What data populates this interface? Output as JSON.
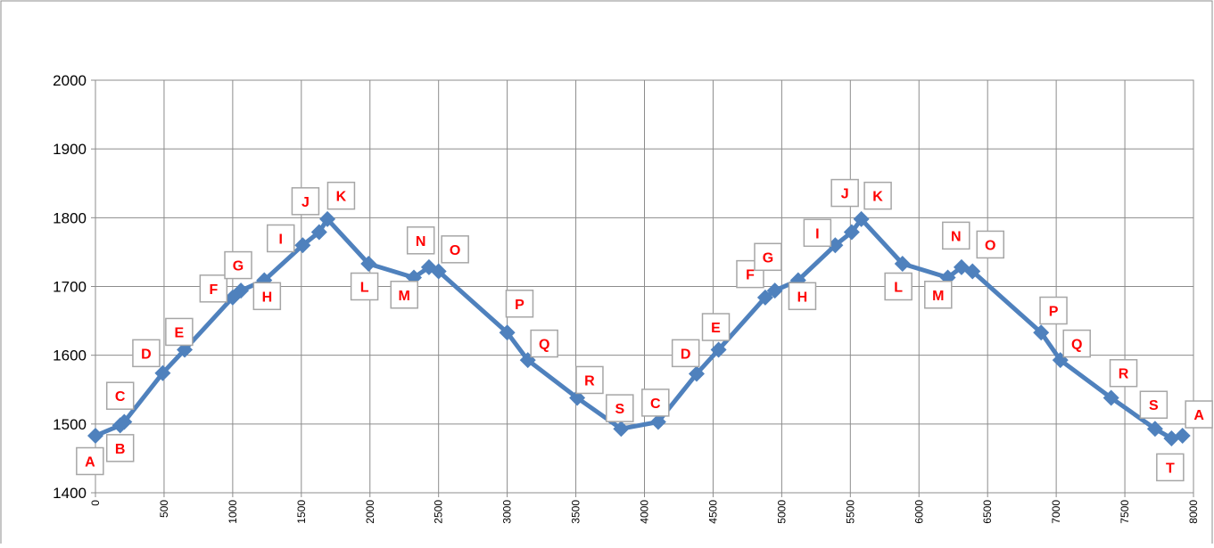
{
  "chart_data": {
    "type": "line",
    "title": "",
    "xlabel": "",
    "ylabel": "",
    "xlim": [
      0,
      8000
    ],
    "ylim": [
      1400,
      2000
    ],
    "x_ticks": [
      "0",
      "500",
      "1000",
      "1500",
      "2000",
      "2500",
      "3000",
      "3500",
      "4000",
      "4500",
      "5000",
      "5500",
      "6000",
      "6500",
      "7000",
      "7500",
      "8000"
    ],
    "y_ticks": [
      "1400",
      "1500",
      "1600",
      "1700",
      "1800",
      "1900",
      "2000"
    ],
    "grid": true,
    "legend": "none",
    "line_color": "#4f81bd",
    "label_color": "#ff0000",
    "series": [
      {
        "points": [
          {
            "x": 0,
            "y": 1483
          },
          {
            "x": 180,
            "y": 1498
          },
          {
            "x": 210,
            "y": 1503
          },
          {
            "x": 490,
            "y": 1574
          },
          {
            "x": 650,
            "y": 1608
          },
          {
            "x": 1000,
            "y": 1684
          },
          {
            "x": 1060,
            "y": 1694
          },
          {
            "x": 1230,
            "y": 1709
          },
          {
            "x": 1510,
            "y": 1760
          },
          {
            "x": 1630,
            "y": 1779
          },
          {
            "x": 1690,
            "y": 1798
          },
          {
            "x": 1990,
            "y": 1733
          },
          {
            "x": 2320,
            "y": 1713
          },
          {
            "x": 2430,
            "y": 1728
          },
          {
            "x": 2500,
            "y": 1722
          },
          {
            "x": 3000,
            "y": 1633
          },
          {
            "x": 3150,
            "y": 1593
          },
          {
            "x": 3510,
            "y": 1538
          },
          {
            "x": 3830,
            "y": 1493
          },
          {
            "x": 4100,
            "y": 1503
          },
          {
            "x": 4380,
            "y": 1573
          },
          {
            "x": 4540,
            "y": 1608
          },
          {
            "x": 4880,
            "y": 1684
          },
          {
            "x": 4950,
            "y": 1694
          },
          {
            "x": 5120,
            "y": 1709
          },
          {
            "x": 5390,
            "y": 1760
          },
          {
            "x": 5510,
            "y": 1779
          },
          {
            "x": 5580,
            "y": 1798
          },
          {
            "x": 5880,
            "y": 1733
          },
          {
            "x": 6210,
            "y": 1713
          },
          {
            "x": 6310,
            "y": 1728
          },
          {
            "x": 6390,
            "y": 1722
          },
          {
            "x": 6890,
            "y": 1633
          },
          {
            "x": 7030,
            "y": 1593
          },
          {
            "x": 7400,
            "y": 1538
          },
          {
            "x": 7720,
            "y": 1493
          },
          {
            "x": 7840,
            "y": 1479
          },
          {
            "x": 7920,
            "y": 1483
          }
        ]
      }
    ],
    "annotations": [
      {
        "text": "A",
        "x": -40,
        "y": 1446
      },
      {
        "text": "B",
        "x": 180,
        "y": 1465
      },
      {
        "text": "C",
        "x": 180,
        "y": 1541
      },
      {
        "text": "D",
        "x": 370,
        "y": 1603
      },
      {
        "text": "E",
        "x": 610,
        "y": 1634
      },
      {
        "text": "F",
        "x": 860,
        "y": 1697
      },
      {
        "text": "G",
        "x": 1040,
        "y": 1731
      },
      {
        "text": "H",
        "x": 1250,
        "y": 1686
      },
      {
        "text": "I",
        "x": 1350,
        "y": 1770
      },
      {
        "text": "J",
        "x": 1530,
        "y": 1824
      },
      {
        "text": "K",
        "x": 1790,
        "y": 1832
      },
      {
        "text": "L",
        "x": 1960,
        "y": 1700
      },
      {
        "text": "M",
        "x": 2250,
        "y": 1688
      },
      {
        "text": "N",
        "x": 2370,
        "y": 1767
      },
      {
        "text": "O",
        "x": 2620,
        "y": 1754
      },
      {
        "text": "P",
        "x": 3090,
        "y": 1675
      },
      {
        "text": "Q",
        "x": 3270,
        "y": 1617
      },
      {
        "text": "R",
        "x": 3600,
        "y": 1564
      },
      {
        "text": "S",
        "x": 3820,
        "y": 1523
      },
      {
        "text": "C",
        "x": 4080,
        "y": 1531
      },
      {
        "text": "D",
        "x": 4300,
        "y": 1603
      },
      {
        "text": "E",
        "x": 4520,
        "y": 1641
      },
      {
        "text": "F",
        "x": 4770,
        "y": 1718
      },
      {
        "text": "G",
        "x": 4900,
        "y": 1743
      },
      {
        "text": "H",
        "x": 5150,
        "y": 1686
      },
      {
        "text": "I",
        "x": 5260,
        "y": 1778
      },
      {
        "text": "J",
        "x": 5460,
        "y": 1836
      },
      {
        "text": "K",
        "x": 5700,
        "y": 1832
      },
      {
        "text": "L",
        "x": 5850,
        "y": 1700
      },
      {
        "text": "M",
        "x": 6140,
        "y": 1688
      },
      {
        "text": "N",
        "x": 6270,
        "y": 1774
      },
      {
        "text": "O",
        "x": 6520,
        "y": 1761
      },
      {
        "text": "P",
        "x": 6980,
        "y": 1665
      },
      {
        "text": "Q",
        "x": 7150,
        "y": 1617
      },
      {
        "text": "R",
        "x": 7490,
        "y": 1574
      },
      {
        "text": "S",
        "x": 7710,
        "y": 1528
      },
      {
        "text": "T",
        "x": 7830,
        "y": 1437
      },
      {
        "text": "A",
        "x": 8040,
        "y": 1514
      }
    ]
  }
}
